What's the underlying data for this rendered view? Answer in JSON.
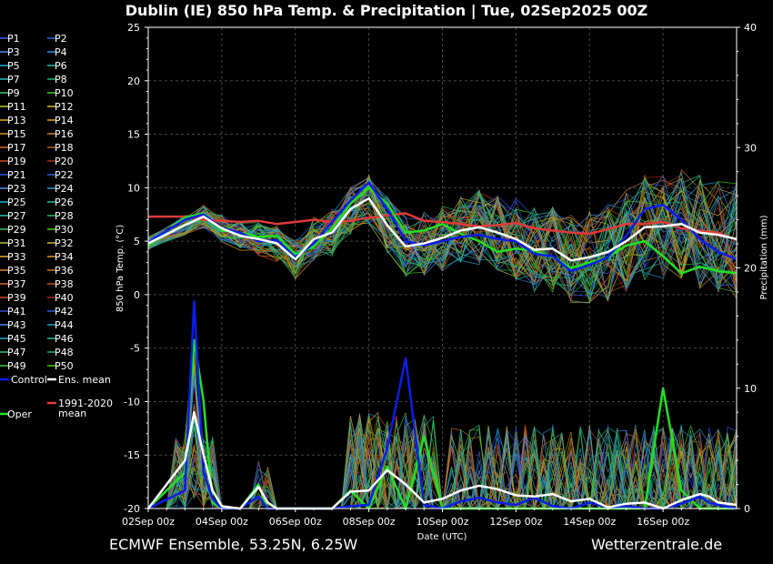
{
  "chart_data": {
    "type": "line",
    "title": "Dublin  (IE)  850 hPa Temp. & Precipitation | Tue, 02Sep2025 00Z",
    "footer_left": "ECMWF Ensemble, 53.25N, 6.25W",
    "footer_right": "Wetterzentrale.de",
    "xlabel": "Date (UTC)",
    "ylabel_left": "850 hPa Temp. (°C)",
    "ylabel_right": "Precipitation (mm)",
    "ylim_left": [
      -20,
      25
    ],
    "ylim_right": [
      0,
      40
    ],
    "xlim_days": [
      0,
      16
    ],
    "x_ticks": [
      "02Sep 00z",
      "04Sep 00z",
      "06Sep 00z",
      "08Sep 00z",
      "10Sep 00z",
      "12Sep 00z",
      "14Sep 00z",
      "16Sep 00z"
    ],
    "y_ticks_left": [
      25,
      20,
      15,
      10,
      5,
      0,
      -5,
      -10,
      -15,
      -20
    ],
    "y_ticks_right": [
      40,
      30,
      20,
      10,
      0
    ],
    "grid": true,
    "legend_position": "left",
    "legend": [
      {
        "label": "P1",
        "color": "#3b5bdb"
      },
      {
        "label": "P2",
        "color": "#2f5fe0"
      },
      {
        "label": "P3",
        "color": "#4f7ee8"
      },
      {
        "label": "P4",
        "color": "#2e86d8"
      },
      {
        "label": "P5",
        "color": "#20a0d0"
      },
      {
        "label": "P6",
        "color": "#2fb0a8"
      },
      {
        "label": "P7",
        "color": "#1fb5b5"
      },
      {
        "label": "P8",
        "color": "#20b070"
      },
      {
        "label": "P9",
        "color": "#30c060"
      },
      {
        "label": "P10",
        "color": "#44c020"
      },
      {
        "label": "P11",
        "color": "#b0c030"
      },
      {
        "label": "P12",
        "color": "#d0b030"
      },
      {
        "label": "P13",
        "color": "#d8a820"
      },
      {
        "label": "P14",
        "color": "#d09a20"
      },
      {
        "label": "P15",
        "color": "#c88830"
      },
      {
        "label": "P16",
        "color": "#c07a30"
      },
      {
        "label": "P17",
        "color": "#c86a20"
      },
      {
        "label": "P18",
        "color": "#b05a20"
      },
      {
        "label": "P19",
        "color": "#c04a20"
      },
      {
        "label": "P20",
        "color": "#a03018"
      },
      {
        "label": "P21",
        "color": "#3050d0"
      },
      {
        "label": "P22",
        "color": "#2a60d8"
      },
      {
        "label": "P23",
        "color": "#4a8ae0"
      },
      {
        "label": "P24",
        "color": "#3090d0"
      },
      {
        "label": "P25",
        "color": "#20a8d0"
      },
      {
        "label": "P26",
        "color": "#28b0a0"
      },
      {
        "label": "P27",
        "color": "#20b8b0"
      },
      {
        "label": "P28",
        "color": "#20a868"
      },
      {
        "label": "P29",
        "color": "#38c058"
      },
      {
        "label": "P30",
        "color": "#48c018"
      },
      {
        "label": "P31",
        "color": "#a8b830"
      },
      {
        "label": "P32",
        "color": "#c8a830"
      },
      {
        "label": "P33",
        "color": "#d8a020"
      },
      {
        "label": "P34",
        "color": "#d09020"
      },
      {
        "label": "P35",
        "color": "#c88030"
      },
      {
        "label": "P36",
        "color": "#b87030"
      },
      {
        "label": "P37",
        "color": "#c86020"
      },
      {
        "label": "P38",
        "color": "#b05020"
      },
      {
        "label": "P39",
        "color": "#c04020"
      },
      {
        "label": "P40",
        "color": "#a02818"
      },
      {
        "label": "P41",
        "color": "#3048c8"
      },
      {
        "label": "P42",
        "color": "#2858d0"
      },
      {
        "label": "P43",
        "color": "#4880d8"
      },
      {
        "label": "P44",
        "color": "#2890c8"
      },
      {
        "label": "P45",
        "color": "#20a0c8"
      },
      {
        "label": "P46",
        "color": "#20b098"
      },
      {
        "label": "P47",
        "color": "#30b870"
      },
      {
        "label": "P48",
        "color": "#20a860"
      },
      {
        "label": "P49",
        "color": "#40c040"
      },
      {
        "label": "P50",
        "color": "#40c010"
      },
      {
        "label": "Control",
        "color": "#0a1ee8"
      },
      {
        "label": "Ens. mean",
        "color": "#ffffff"
      },
      {
        "label": "1991-2020 mean",
        "color": "#e03a3a"
      },
      {
        "label": "Oper",
        "color": "#22e022"
      }
    ],
    "series_highlight": [
      {
        "name": "Ens. mean",
        "axis": "temp",
        "x": [
          0,
          1,
          1.5,
          2,
          2.5,
          3,
          3.5,
          4,
          4.5,
          5,
          5.5,
          6,
          6.5,
          7,
          7.5,
          8,
          8.5,
          9,
          9.5,
          10,
          10.5,
          11,
          11.5,
          12,
          12.5,
          13,
          13.5,
          14,
          14.5,
          15,
          15.5,
          16
        ],
        "y": [
          4.8,
          6.5,
          7.3,
          6.2,
          5.5,
          5.2,
          4.8,
          3.3,
          5.2,
          5.8,
          8.0,
          9.0,
          6.5,
          4.5,
          4.8,
          5.3,
          6.0,
          6.3,
          5.8,
          5.2,
          4.2,
          4.3,
          3.2,
          3.5,
          4.0,
          5.0,
          6.3,
          6.4,
          6.6,
          5.8,
          5.6,
          5.2
        ]
      },
      {
        "name": "1991-2020 mean",
        "axis": "temp",
        "x": [
          0,
          1,
          1.5,
          2,
          2.5,
          3,
          3.5,
          4,
          4.5,
          5,
          5.5,
          6,
          6.5,
          7,
          7.5,
          8,
          8.5,
          9,
          9.5,
          10,
          10.5,
          11,
          11.5,
          12,
          12.5,
          13,
          13.5,
          14,
          14.5,
          15,
          15.5,
          16
        ],
        "y": [
          7.3,
          7.3,
          7.0,
          6.9,
          6.8,
          6.9,
          6.6,
          6.8,
          7.0,
          6.8,
          6.9,
          7.2,
          7.4,
          7.6,
          6.9,
          6.8,
          6.6,
          6.4,
          6.5,
          6.7,
          6.2,
          6.0,
          5.8,
          5.7,
          6.1,
          6.6,
          6.6,
          6.8,
          6.2,
          6.0,
          5.8,
          5.1
        ]
      },
      {
        "name": "Oper",
        "axis": "temp",
        "x": [
          0,
          1,
          1.5,
          2,
          2.5,
          3,
          3.5,
          4,
          4.5,
          5,
          5.5,
          6,
          6.5,
          7,
          7.5,
          8,
          8.5,
          9,
          9.5,
          10,
          10.5,
          11,
          11.5,
          12,
          12.5,
          13,
          13.5,
          14,
          14.5,
          15,
          15.5,
          16
        ],
        "y": [
          4.6,
          7.2,
          7.6,
          6.0,
          5.8,
          5.4,
          5.5,
          3.8,
          4.5,
          6.2,
          8.5,
          10.0,
          8.5,
          5.8,
          6.0,
          6.6,
          5.7,
          5.0,
          4.0,
          4.3,
          4.1,
          3.5,
          2.5,
          3.0,
          3.5,
          4.6,
          5.0,
          3.6,
          2.0,
          2.6,
          2.2,
          2.0
        ]
      },
      {
        "name": "Control",
        "axis": "temp",
        "x": [
          0,
          1,
          1.5,
          2,
          2.5,
          3,
          3.5,
          4,
          4.5,
          5,
          5.5,
          6,
          6.5,
          7,
          7.5,
          8,
          8.5,
          9,
          9.5,
          10,
          10.5,
          11,
          11.5,
          12,
          12.5,
          13,
          13.5,
          14,
          14.5,
          15,
          15.5,
          16
        ],
        "y": [
          4.9,
          7.0,
          7.5,
          6.2,
          5.8,
          5.0,
          5.1,
          3.5,
          4.8,
          6.8,
          8.8,
          10.5,
          8.0,
          5.0,
          4.6,
          5.0,
          5.4,
          5.6,
          5.2,
          5.0,
          3.8,
          3.6,
          2.2,
          2.8,
          3.5,
          5.5,
          8.0,
          8.4,
          7.0,
          5.2,
          4.0,
          3.3
        ]
      },
      {
        "name": "Ens. mean",
        "axis": "precip",
        "x": [
          0,
          1,
          1.25,
          1.5,
          1.75,
          2,
          2.5,
          3,
          3.25,
          3.5,
          4,
          4.5,
          5,
          5.5,
          6,
          6.5,
          7,
          7.5,
          8,
          8.5,
          9,
          9.5,
          10,
          10.5,
          11,
          11.5,
          12,
          12.5,
          13,
          13.5,
          14,
          14.5,
          15,
          15.25,
          15.5,
          16
        ],
        "y": [
          0,
          4.0,
          8.0,
          4.5,
          1.5,
          0.2,
          0,
          1.8,
          0.5,
          0,
          0,
          0,
          0,
          1.4,
          1.5,
          3.2,
          2.0,
          0.5,
          0.8,
          1.5,
          1.9,
          1.6,
          1.1,
          1.0,
          1.2,
          0.6,
          0.8,
          0.1,
          0.4,
          0.5,
          0,
          0.7,
          1.2,
          1.0,
          0.5,
          0.3
        ]
      },
      {
        "name": "Control",
        "axis": "precip",
        "x": [
          0,
          1,
          1.25,
          1.5,
          1.75,
          2,
          2.5,
          3,
          3.25,
          3.5,
          4,
          4.5,
          5,
          5.5,
          6,
          6.5,
          7,
          7.5,
          8,
          8.5,
          9,
          9.5,
          10,
          10.5,
          11,
          11.5,
          12,
          12.5,
          13,
          13.5,
          14,
          14.5,
          15,
          15.25,
          15.5,
          16
        ],
        "y": [
          0,
          1.5,
          17.2,
          3.0,
          0.8,
          0,
          0,
          1.0,
          0,
          0,
          0,
          0,
          0,
          0.2,
          0.3,
          5.0,
          12.5,
          0.3,
          0,
          0.6,
          0.9,
          0.5,
          0.3,
          0.9,
          0.2,
          0,
          0.5,
          0.1,
          0.2,
          0,
          0,
          0.4,
          1.0,
          0.5,
          0.3,
          0
        ]
      },
      {
        "name": "Oper",
        "axis": "precip",
        "x": [
          0,
          1,
          1.25,
          1.5,
          1.75,
          2,
          2.5,
          3,
          3.25,
          3.5,
          4,
          4.5,
          5,
          5.5,
          6,
          6.5,
          7,
          7.5,
          8,
          8.5,
          9,
          9.5,
          10,
          10.5,
          11,
          11.5,
          12,
          12.5,
          13,
          13.5,
          14,
          14.5,
          15,
          15.25,
          15.5,
          16
        ],
        "y": [
          0,
          3.0,
          14.0,
          9.0,
          0.5,
          0,
          0,
          2.0,
          0,
          0,
          0,
          0,
          0,
          1.5,
          0,
          3.5,
          0,
          6.0,
          0,
          0,
          0,
          0,
          0,
          0,
          0,
          0,
          0,
          0,
          0,
          0,
          10.0,
          1.5,
          0,
          0,
          0,
          0
        ]
      }
    ]
  }
}
